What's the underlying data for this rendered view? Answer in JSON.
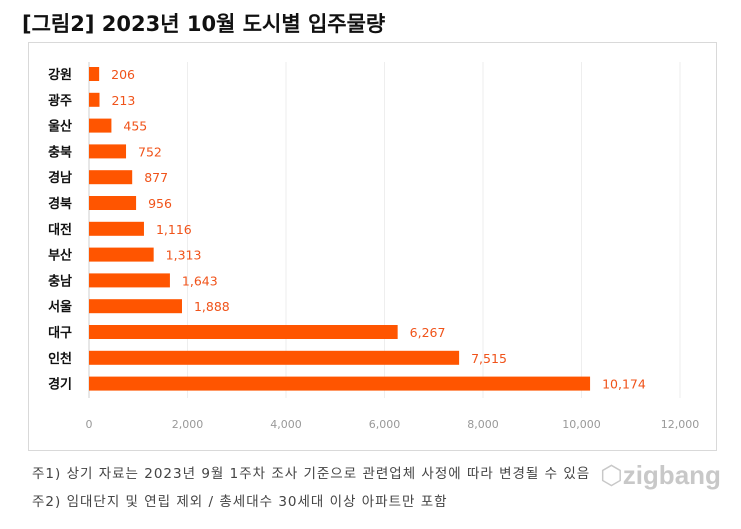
{
  "title": "[그림2]  2023년 10월 도시별 입주물량",
  "chart_data": {
    "type": "bar",
    "orientation": "horizontal",
    "categories": [
      "강원",
      "광주",
      "울산",
      "충북",
      "경남",
      "경북",
      "대전",
      "부산",
      "충남",
      "서울",
      "대구",
      "인천",
      "경기"
    ],
    "values": [
      206,
      213,
      455,
      752,
      877,
      956,
      1116,
      1313,
      1643,
      1888,
      6267,
      7515,
      10174
    ],
    "data_labels": [
      "206",
      "213",
      "455",
      "752",
      "877",
      "956",
      "1,116",
      "1,313",
      "1,643",
      "1,888",
      "6,267",
      "7,515",
      "10,174"
    ],
    "xlim": [
      0,
      12000
    ],
    "xticks": [
      "0",
      "2,000",
      "4,000",
      "6,000",
      "8,000",
      "10,000",
      "12,000"
    ],
    "grid": true,
    "bar_color": "#ff5500",
    "label_color": "#f0531a"
  },
  "notes": [
    "주1) 상기 자료는 2023년 9월 1주차 조사 기준으로 관련업체 사정에 따라 변경될 수 있음",
    "주2) 임대단지 및 연립 제외 / 총세대수 30세대 이상 아파트만 포함"
  ],
  "watermark": "zigbang"
}
